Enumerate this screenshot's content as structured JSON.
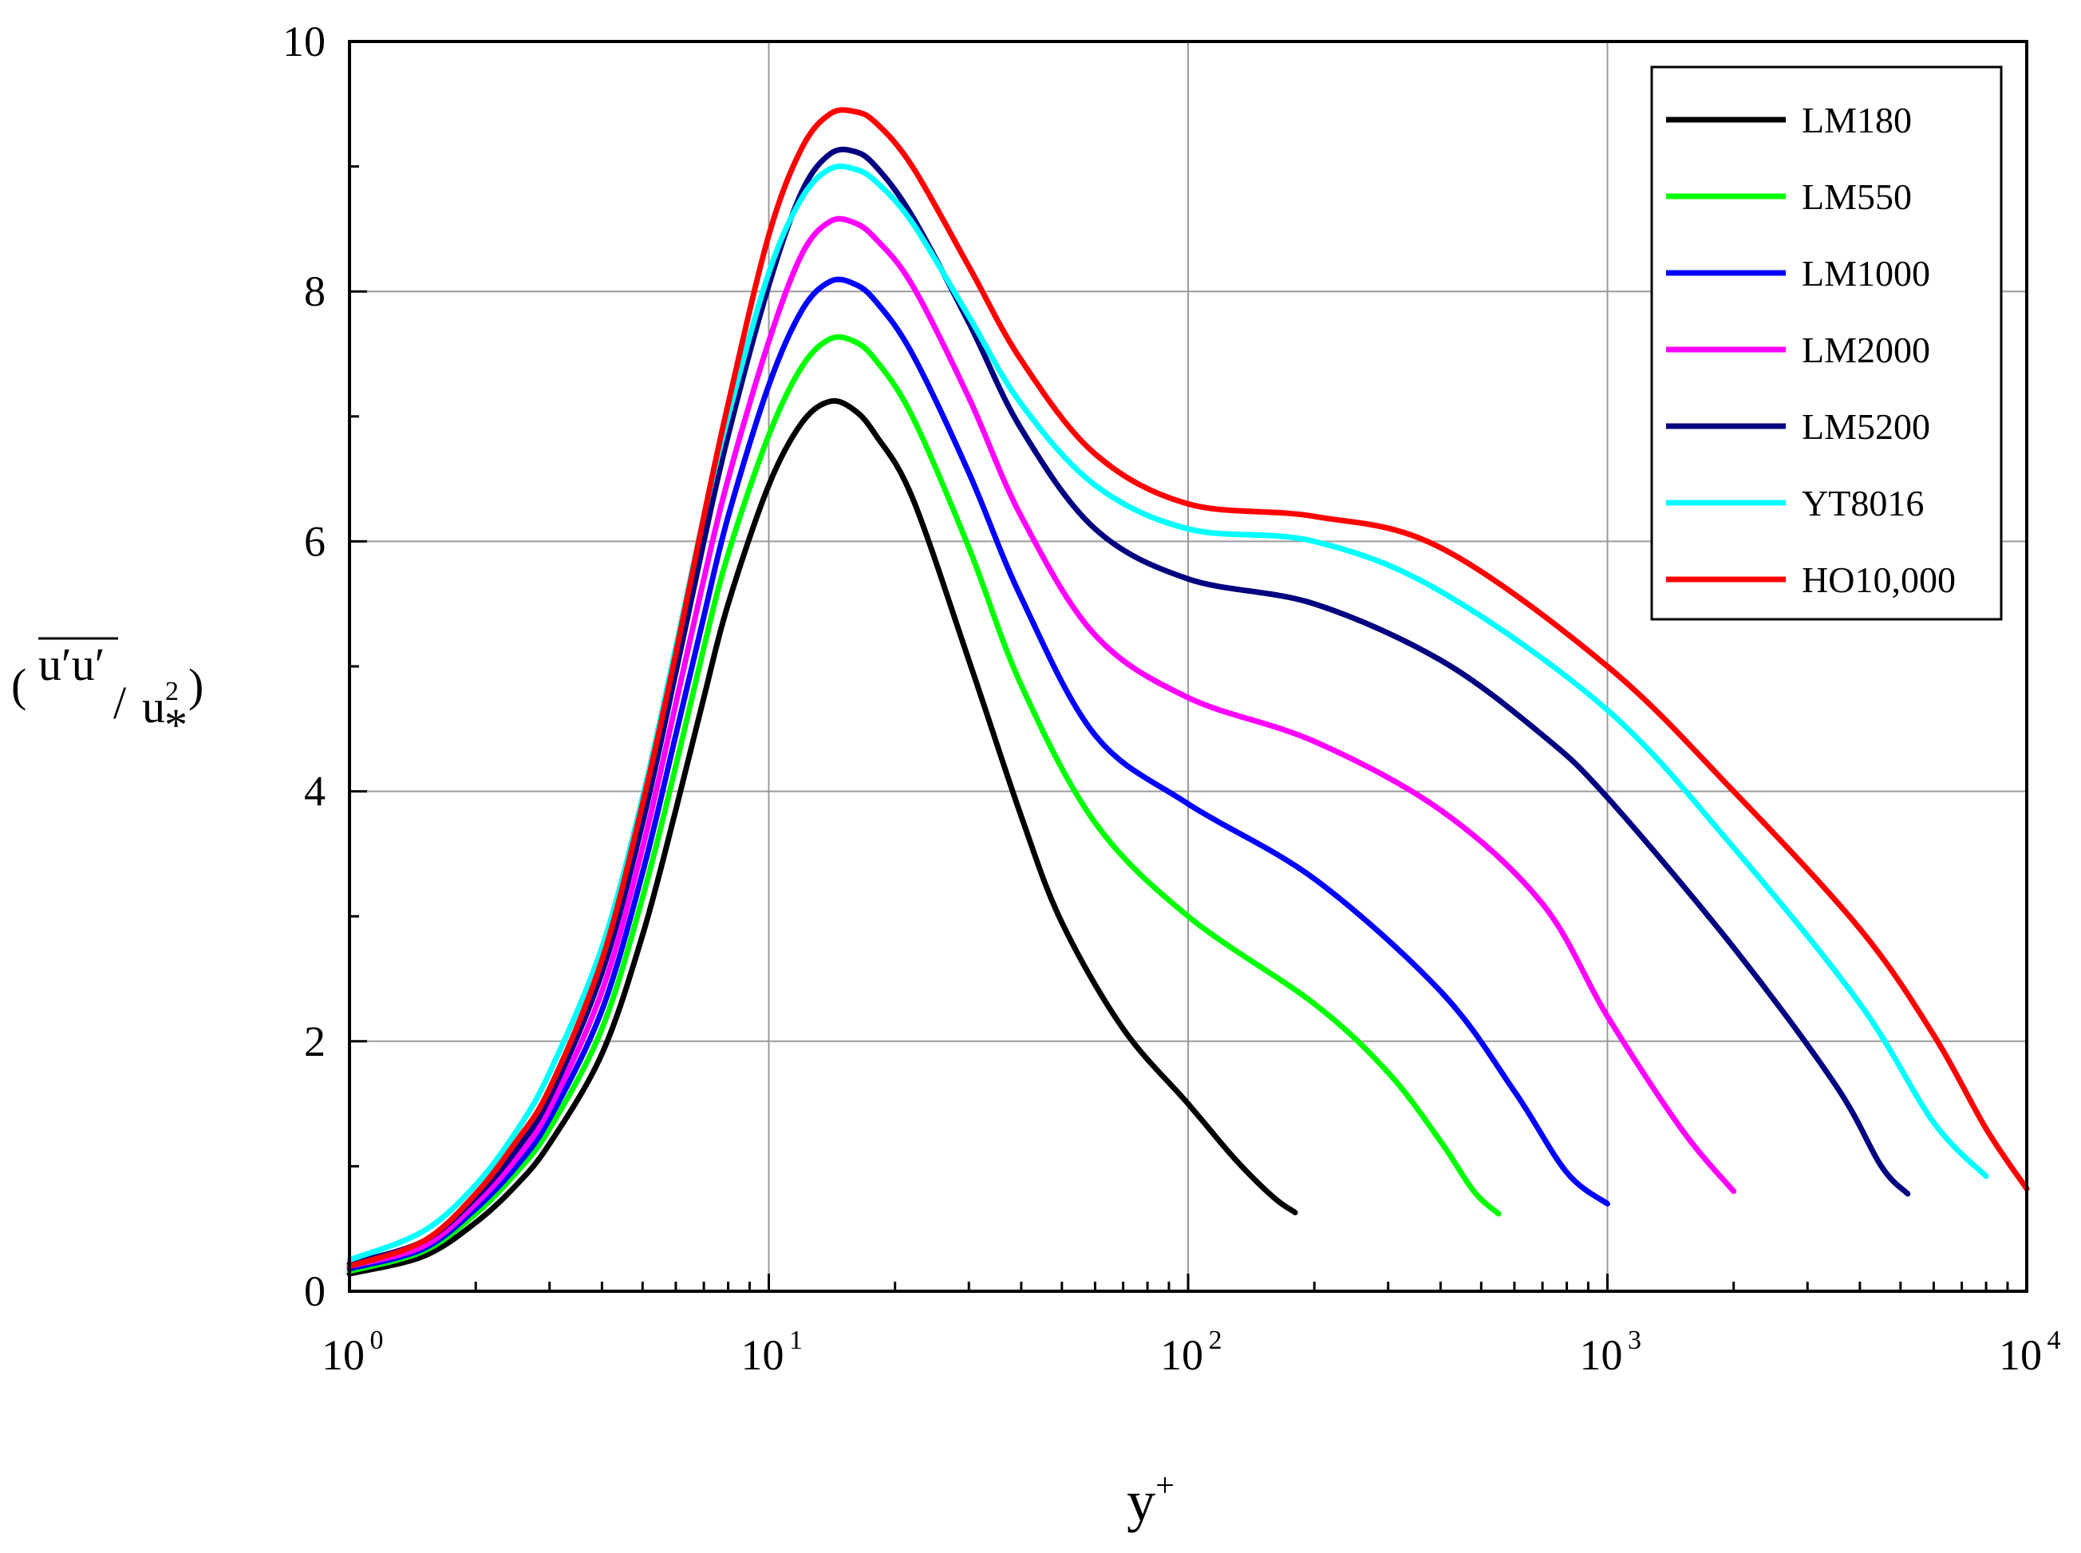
{
  "chart_data": {
    "type": "line",
    "title": "",
    "xlabel": "y",
    "xlabel_sup": "+",
    "ylabel": "(u'u' / u*²)",
    "ylabel_parts": {
      "open": "(",
      "numerator": "u′u′",
      "slash": "/",
      "denominator": "u",
      "denominator_sup": "2",
      "denominator_sub": "*",
      "close": ")"
    },
    "x_scale": "log",
    "xlim": [
      1,
      10000
    ],
    "ylim": [
      0,
      10
    ],
    "grid": true,
    "legend_position": "top-right",
    "x_ticks": [
      {
        "base": "10",
        "exp": "0",
        "value": 1
      },
      {
        "base": "10",
        "exp": "1",
        "value": 10
      },
      {
        "base": "10",
        "exp": "2",
        "value": 100
      },
      {
        "base": "10",
        "exp": "3",
        "value": 1000
      },
      {
        "base": "10",
        "exp": "4",
        "value": 10000
      }
    ],
    "y_ticks": [
      {
        "label": "0",
        "value": 0
      },
      {
        "label": "2",
        "value": 2
      },
      {
        "label": "4",
        "value": 4
      },
      {
        "label": "6",
        "value": 6
      },
      {
        "label": "8",
        "value": 8
      },
      {
        "label": "10",
        "value": 10
      }
    ],
    "series": [
      {
        "name": "LM180",
        "color": "#000000",
        "points": [
          [
            1,
            0.14
          ],
          [
            1.5,
            0.28
          ],
          [
            2,
            0.55
          ],
          [
            2.5,
            0.85
          ],
          [
            3,
            1.18
          ],
          [
            4,
            1.9
          ],
          [
            5,
            2.85
          ],
          [
            6,
            3.85
          ],
          [
            7,
            4.75
          ],
          [
            8,
            5.5
          ],
          [
            10,
            6.45
          ],
          [
            12,
            6.95
          ],
          [
            14,
            7.12
          ],
          [
            16,
            7.05
          ],
          [
            18,
            6.85
          ],
          [
            22,
            6.35
          ],
          [
            30,
            5.05
          ],
          [
            40,
            3.8
          ],
          [
            50,
            2.95
          ],
          [
            70,
            2.1
          ],
          [
            100,
            1.5
          ],
          [
            130,
            1.05
          ],
          [
            160,
            0.75
          ],
          [
            180,
            0.63
          ]
        ]
      },
      {
        "name": "LM550",
        "color": "#00ff00",
        "points": [
          [
            1,
            0.16
          ],
          [
            1.5,
            0.32
          ],
          [
            2,
            0.62
          ],
          [
            2.5,
            0.95
          ],
          [
            3,
            1.3
          ],
          [
            4,
            2.1
          ],
          [
            5,
            3.15
          ],
          [
            6,
            4.2
          ],
          [
            7,
            5.15
          ],
          [
            8,
            5.9
          ],
          [
            10,
            6.85
          ],
          [
            12,
            7.4
          ],
          [
            14,
            7.62
          ],
          [
            16,
            7.6
          ],
          [
            18,
            7.45
          ],
          [
            22,
            7.0
          ],
          [
            30,
            5.95
          ],
          [
            40,
            4.85
          ],
          [
            60,
            3.75
          ],
          [
            100,
            3.0
          ],
          [
            200,
            2.3
          ],
          [
            300,
            1.75
          ],
          [
            400,
            1.2
          ],
          [
            480,
            0.8
          ],
          [
            550,
            0.62
          ]
        ]
      },
      {
        "name": "LM1000",
        "color": "#0000ff",
        "points": [
          [
            1,
            0.18
          ],
          [
            1.5,
            0.34
          ],
          [
            2,
            0.66
          ],
          [
            2.5,
            1.0
          ],
          [
            3,
            1.38
          ],
          [
            4,
            2.25
          ],
          [
            5,
            3.35
          ],
          [
            6,
            4.45
          ],
          [
            7,
            5.4
          ],
          [
            8,
            6.2
          ],
          [
            10,
            7.25
          ],
          [
            12,
            7.85
          ],
          [
            14,
            8.08
          ],
          [
            16,
            8.06
          ],
          [
            18,
            7.92
          ],
          [
            22,
            7.5
          ],
          [
            30,
            6.55
          ],
          [
            40,
            5.55
          ],
          [
            60,
            4.45
          ],
          [
            100,
            3.9
          ],
          [
            200,
            3.3
          ],
          [
            400,
            2.4
          ],
          [
            600,
            1.6
          ],
          [
            800,
            0.95
          ],
          [
            1000,
            0.7
          ]
        ]
      },
      {
        "name": "LM2000",
        "color": "#ff00ff",
        "points": [
          [
            1,
            0.2
          ],
          [
            1.5,
            0.36
          ],
          [
            2,
            0.7
          ],
          [
            2.5,
            1.06
          ],
          [
            3,
            1.46
          ],
          [
            4,
            2.4
          ],
          [
            5,
            3.55
          ],
          [
            6,
            4.7
          ],
          [
            7,
            5.7
          ],
          [
            8,
            6.5
          ],
          [
            10,
            7.6
          ],
          [
            12,
            8.3
          ],
          [
            14,
            8.56
          ],
          [
            16,
            8.55
          ],
          [
            18,
            8.42
          ],
          [
            22,
            8.05
          ],
          [
            30,
            7.15
          ],
          [
            40,
            6.2
          ],
          [
            60,
            5.25
          ],
          [
            100,
            4.75
          ],
          [
            200,
            4.4
          ],
          [
            400,
            3.85
          ],
          [
            700,
            3.1
          ],
          [
            1000,
            2.2
          ],
          [
            1500,
            1.3
          ],
          [
            2000,
            0.8
          ]
        ]
      },
      {
        "name": "LM5200",
        "color": "#000080",
        "points": [
          [
            1,
            0.22
          ],
          [
            1.5,
            0.4
          ],
          [
            2,
            0.75
          ],
          [
            2.5,
            1.13
          ],
          [
            3,
            1.55
          ],
          [
            4,
            2.55
          ],
          [
            5,
            3.75
          ],
          [
            6,
            4.95
          ],
          [
            7,
            6.0
          ],
          [
            8,
            6.85
          ],
          [
            10,
            8.05
          ],
          [
            12,
            8.8
          ],
          [
            14,
            9.1
          ],
          [
            16,
            9.12
          ],
          [
            18,
            9.0
          ],
          [
            22,
            8.6
          ],
          [
            30,
            7.75
          ],
          [
            40,
            6.9
          ],
          [
            60,
            6.1
          ],
          [
            100,
            5.7
          ],
          [
            200,
            5.5
          ],
          [
            400,
            5.05
          ],
          [
            700,
            4.45
          ],
          [
            1000,
            3.95
          ],
          [
            2000,
            2.75
          ],
          [
            3500,
            1.65
          ],
          [
            4500,
            1.0
          ],
          [
            5200,
            0.78
          ]
        ]
      },
      {
        "name": "YT8016",
        "color": "#00ffff",
        "points": [
          [
            1,
            0.25
          ],
          [
            1.5,
            0.48
          ],
          [
            2,
            0.85
          ],
          [
            2.5,
            1.28
          ],
          [
            3,
            1.75
          ],
          [
            4,
            2.75
          ],
          [
            5,
            3.95
          ],
          [
            6,
            5.15
          ],
          [
            7,
            6.2
          ],
          [
            8,
            7.0
          ],
          [
            10,
            8.15
          ],
          [
            12,
            8.75
          ],
          [
            14,
            8.98
          ],
          [
            16,
            8.98
          ],
          [
            18,
            8.88
          ],
          [
            22,
            8.55
          ],
          [
            30,
            7.8
          ],
          [
            40,
            7.1
          ],
          [
            60,
            6.45
          ],
          [
            100,
            6.1
          ],
          [
            200,
            6.0
          ],
          [
            400,
            5.6
          ],
          [
            1000,
            4.65
          ],
          [
            2000,
            3.55
          ],
          [
            4000,
            2.3
          ],
          [
            6000,
            1.35
          ],
          [
            8000,
            0.92
          ]
        ]
      },
      {
        "name": "HO10,000",
        "color": "#ff0000",
        "points": [
          [
            1,
            0.2
          ],
          [
            1.5,
            0.4
          ],
          [
            2,
            0.78
          ],
          [
            2.5,
            1.2
          ],
          [
            3,
            1.62
          ],
          [
            4,
            2.65
          ],
          [
            5,
            3.9
          ],
          [
            6,
            5.1
          ],
          [
            7,
            6.2
          ],
          [
            8,
            7.1
          ],
          [
            10,
            8.45
          ],
          [
            12,
            9.15
          ],
          [
            14,
            9.42
          ],
          [
            16,
            9.44
          ],
          [
            18,
            9.35
          ],
          [
            22,
            9.0
          ],
          [
            30,
            8.2
          ],
          [
            40,
            7.45
          ],
          [
            60,
            6.7
          ],
          [
            100,
            6.3
          ],
          [
            200,
            6.2
          ],
          [
            400,
            5.95
          ],
          [
            1000,
            5.0
          ],
          [
            2000,
            4.0
          ],
          [
            4000,
            2.9
          ],
          [
            6000,
            2.05
          ],
          [
            8000,
            1.3
          ],
          [
            10000,
            0.82
          ]
        ]
      }
    ]
  }
}
